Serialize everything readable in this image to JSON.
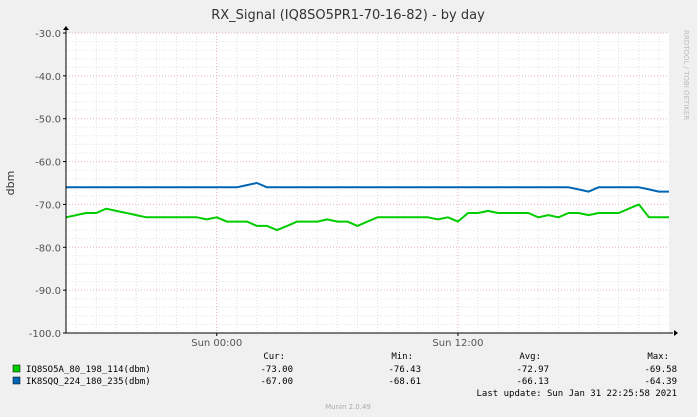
{
  "colors": {
    "background": "#f0f0f0",
    "plot_background": "#ffffff",
    "series_1": "#00cc00",
    "series_2": "#0066b3",
    "grid_major": "#e5b5b5",
    "grid_minor": "#e0e0e0",
    "axis": "#000000"
  },
  "side_label": "RRDTOOL / TOBI OETIKER",
  "footer": "Munin 2.0.49",
  "legend_headers": {
    "cur": "Cur:",
    "min": "Min:",
    "avg": "Avg:",
    "max": "Max:"
  },
  "legend_rows": [
    {
      "name": "IQ8SO5A_80_198_114(dbm)",
      "cur": "-73.00",
      "min": "-76.43",
      "avg": "-72.97",
      "max": "-69.58",
      "color": "#00cc00"
    },
    {
      "name": "IK8SQQ_224_180_235(dbm)",
      "cur": "-67.00",
      "min": "-68.61",
      "avg": "-66.13",
      "max": "-64.39",
      "color": "#0066b3"
    }
  ],
  "last_update": "Last update: Sun Jan 31 22:25:58 2021",
  "chart_data": {
    "type": "line",
    "title": "RX_Signal (IQ8SO5PR1-70-16-82) - by day",
    "ylabel": "dbm",
    "xlabel": "",
    "ylim": [
      -100,
      -30
    ],
    "yticks": [
      -30,
      -40,
      -50,
      -60,
      -70,
      -80,
      -90,
      -100
    ],
    "ytick_labels": [
      "-30.0",
      "-40.0",
      "-50.0",
      "-60.0",
      "-70.0",
      "-80.0",
      "-90.0",
      "-100.0"
    ],
    "xrange_hours": [
      -7.5,
      22.5
    ],
    "xticks": [
      0,
      12
    ],
    "xtick_labels": [
      "Sun 00:00",
      "Sun 12:00"
    ],
    "grid": true,
    "legend": "bottom",
    "series": [
      {
        "name": "IQ8SO5A_80_198_114(dbm)",
        "color": "#00cc00",
        "x": [
          -7.5,
          -6.5,
          -6,
          -5.5,
          -5,
          -4.5,
          -4,
          -3.5,
          -3,
          -2.5,
          -2,
          -1.5,
          -1,
          -0.5,
          0,
          0.5,
          1,
          1.5,
          2,
          2.5,
          3,
          3.5,
          4,
          4.5,
          5,
          5.5,
          6,
          6.5,
          7,
          7.5,
          8,
          8.5,
          9,
          9.5,
          10,
          10.5,
          11,
          11.5,
          12,
          12.5,
          13,
          13.5,
          14,
          14.5,
          15,
          15.5,
          16,
          16.5,
          17,
          17.5,
          18,
          18.5,
          19,
          19.5,
          20,
          20.5,
          21,
          21.5,
          22,
          22.5
        ],
        "values": [
          -73,
          -72,
          -72,
          -71,
          -71.5,
          -72,
          -72.5,
          -73,
          -73,
          -73,
          -73,
          -73,
          -73,
          -73.5,
          -73,
          -74,
          -74,
          -74,
          -75,
          -75,
          -76,
          -75,
          -74,
          -74,
          -74,
          -73.5,
          -74,
          -74,
          -75,
          -74,
          -73,
          -73,
          -73,
          -73,
          -73,
          -73,
          -73.5,
          -73,
          -74,
          -72,
          -72,
          -71.5,
          -72,
          -72,
          -72,
          -72,
          -73,
          -72.5,
          -73,
          -72,
          -72,
          -72.5,
          -72,
          -72,
          -72,
          -71,
          -70,
          -73,
          -73,
          -73
        ]
      },
      {
        "name": "IK8SQQ_224_180_235(dbm)",
        "color": "#0066b3",
        "x": [
          -7.5,
          -6.5,
          -6,
          -5.5,
          -5,
          -4.5,
          -4,
          -3.5,
          -3,
          -2.5,
          -2,
          -1.5,
          -1,
          -0.5,
          0,
          0.5,
          1,
          1.5,
          2,
          2.5,
          3,
          3.5,
          4,
          4.5,
          5,
          5.5,
          6,
          6.5,
          7,
          7.5,
          8,
          8.5,
          9,
          9.5,
          10,
          10.5,
          11,
          11.5,
          12,
          12.5,
          13,
          13.5,
          14,
          14.5,
          15,
          15.5,
          16,
          16.5,
          17,
          17.5,
          18,
          18.5,
          19,
          19.5,
          20,
          20.5,
          21,
          21.5,
          22,
          22.5
        ],
        "values": [
          -66,
          -66,
          -66,
          -66,
          -66,
          -66,
          -66,
          -66,
          -66,
          -66,
          -66,
          -66,
          -66,
          -66,
          -66,
          -66,
          -66,
          -65.5,
          -65,
          -66,
          -66,
          -66,
          -66,
          -66,
          -66,
          -66,
          -66,
          -66,
          -66,
          -66,
          -66,
          -66,
          -66,
          -66,
          -66,
          -66,
          -66,
          -66,
          -66,
          -66,
          -66,
          -66,
          -66,
          -66,
          -66,
          -66,
          -66,
          -66,
          -66,
          -66,
          -66.5,
          -67,
          -66,
          -66,
          -66,
          -66,
          -66,
          -66.5,
          -67,
          -67
        ]
      }
    ]
  }
}
